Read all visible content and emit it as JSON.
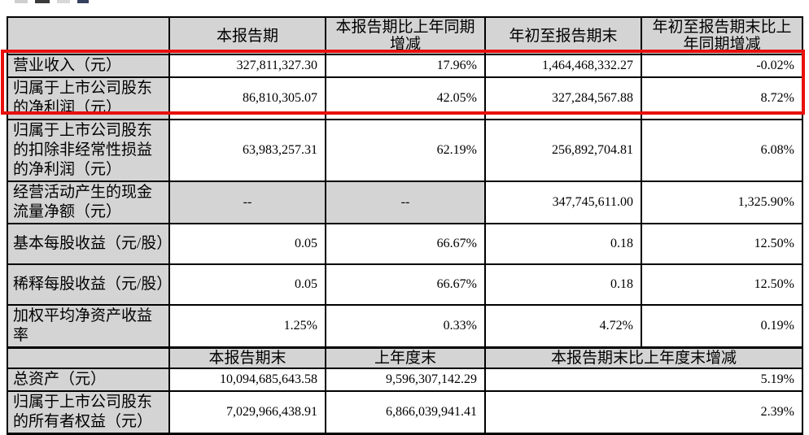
{
  "document": {
    "highlight_color": "#e8100c",
    "table_gray": "#d4d4d4",
    "section1": {
      "col_headers": {
        "period": "本报告期",
        "period_yoy": "本报告期比上年同期增减",
        "ytd": "年初至报告期末",
        "ytd_yoy": "年初至报告期末比上年同期增减"
      },
      "rows": [
        {
          "label": "营业收入（元）",
          "period": "327,811,327.30",
          "period_yoy": "17.96%",
          "ytd": "1,464,468,332.27",
          "ytd_yoy": "-0.02%"
        },
        {
          "label": "归属于上市公司股东的净利润（元）",
          "period": "86,810,305.07",
          "period_yoy": "42.05%",
          "ytd": "327,284,567.88",
          "ytd_yoy": "8.72%"
        },
        {
          "label": "归属于上市公司股东的扣除非经常性损益的净利润（元）",
          "period": "63,983,257.31",
          "period_yoy": "62.19%",
          "ytd": "256,892,704.81",
          "ytd_yoy": "6.08%"
        },
        {
          "label": "经营活动产生的现金流量净额（元）",
          "period": "--",
          "period_yoy": "--",
          "ytd": "347,745,611.00",
          "ytd_yoy": "1,325.90%"
        },
        {
          "label": "基本每股收益（元/股）",
          "period": "0.05",
          "period_yoy": "66.67%",
          "ytd": "0.18",
          "ytd_yoy": "12.50%"
        },
        {
          "label": "稀释每股收益（元/股）",
          "period": "0.05",
          "period_yoy": "66.67%",
          "ytd": "0.18",
          "ytd_yoy": "12.50%"
        },
        {
          "label": "加权平均净资产收益率",
          "period": "1.25%",
          "period_yoy": "0.33%",
          "ytd": "4.72%",
          "ytd_yoy": "0.19%"
        }
      ]
    },
    "section2": {
      "col_headers": {
        "period_end": "本报告期末",
        "prev_year_end": "上年度末",
        "change": "本报告期末比上年度末增减"
      },
      "rows": [
        {
          "label": "总资产（元）",
          "period_end": "10,094,685,643.58",
          "prev_year_end": "9,596,307,142.29",
          "change": "5.19%"
        },
        {
          "label": "归属于上市公司股东的所有者权益（元）",
          "period_end": "7,029,966,438.91",
          "prev_year_end": "6,866,039,941.41",
          "change": "2.39%"
        }
      ]
    }
  }
}
